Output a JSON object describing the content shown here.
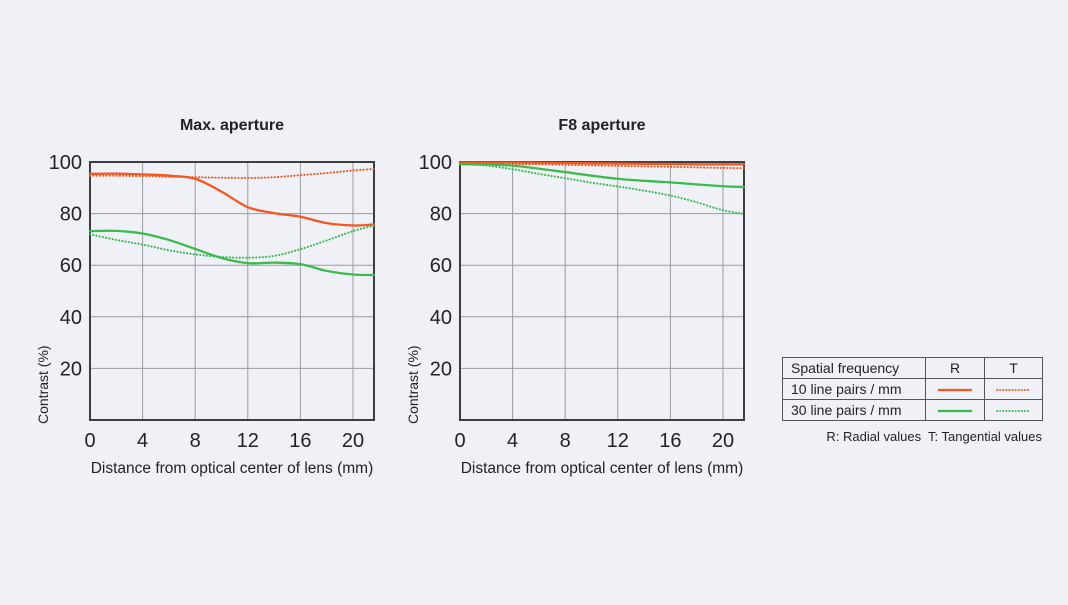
{
  "style": {
    "page_bg": "#eff1f6",
    "grid": "#9b9ca3",
    "border": "#3d3d42",
    "text": "#232327",
    "orange": "#f4571f",
    "green": "#3bba4e"
  },
  "chart_data": [
    {
      "type": "line",
      "title": "Max. aperture",
      "xlabel": "Distance from optical center of lens (mm)",
      "ylabel": "Contrast (%)",
      "xlim": [
        0,
        21.6
      ],
      "ylim": [
        0,
        100
      ],
      "xticks": [
        0,
        4,
        8,
        12,
        16,
        20
      ],
      "yticks": [
        20,
        40,
        60,
        80,
        100
      ],
      "grid": true,
      "series": [
        {
          "id": "t10",
          "name": "10 line pairs / mm — T (tangential)",
          "color": "#f4571f",
          "dash": "dotted",
          "x": [
            0,
            2,
            4,
            6,
            8,
            10,
            12,
            14,
            16,
            18,
            20,
            21.6
          ],
          "y": [
            94.7,
            94.7,
            94.5,
            94.3,
            94.1,
            93.9,
            93.8,
            94.1,
            94.9,
            95.7,
            96.7,
            97.3
          ]
        },
        {
          "id": "r10",
          "name": "10 line pairs / mm — R (radial)",
          "color": "#f4571f",
          "dash": "solid",
          "x": [
            0,
            2,
            4,
            6,
            8,
            10,
            12,
            14,
            16,
            18,
            20,
            21.6
          ],
          "y": [
            95.4,
            95.5,
            95.2,
            94.7,
            93.5,
            88.5,
            82.5,
            80.2,
            78.8,
            76.3,
            75.4,
            75.8
          ]
        },
        {
          "id": "t30",
          "name": "30 line pairs / mm — T (tangential)",
          "color": "#3bba4e",
          "dash": "dotted",
          "x": [
            0,
            2,
            4,
            6,
            8,
            10,
            12,
            14,
            16,
            18,
            20,
            21.6
          ],
          "y": [
            72,
            69.8,
            68,
            65.8,
            64.2,
            63.2,
            62.9,
            63.6,
            66.2,
            69.6,
            73.2,
            75.4
          ]
        },
        {
          "id": "r30",
          "name": "30 line pairs / mm — R (radial)",
          "color": "#3bba4e",
          "dash": "solid",
          "x": [
            0,
            2,
            4,
            6,
            8,
            10,
            12,
            14,
            16,
            18,
            20,
            21.6
          ],
          "y": [
            73.2,
            73.3,
            72.3,
            69.8,
            66.3,
            62.8,
            60.8,
            61.0,
            60.4,
            57.8,
            56.4,
            56.2
          ]
        }
      ]
    },
    {
      "type": "line",
      "title": "F8 aperture",
      "xlabel": "Distance from optical center of lens (mm)",
      "ylabel": "Contrast (%)",
      "xlim": [
        0,
        21.6
      ],
      "ylim": [
        0,
        100
      ],
      "xticks": [
        0,
        4,
        8,
        12,
        16,
        20
      ],
      "yticks": [
        20,
        40,
        60,
        80,
        100
      ],
      "grid": true,
      "series": [
        {
          "id": "t10",
          "name": "10 line pairs / mm — T (tangential)",
          "color": "#f4571f",
          "dash": "dotted",
          "x": [
            0,
            2,
            4,
            6,
            8,
            10,
            12,
            14,
            16,
            18,
            20,
            21.6
          ],
          "y": [
            99.4,
            99.3,
            99.2,
            99.1,
            98.9,
            98.7,
            98.5,
            98.3,
            98.1,
            97.9,
            97.7,
            97.6
          ]
        },
        {
          "id": "r10",
          "name": "10 line pairs / mm — R (radial)",
          "color": "#f4571f",
          "dash": "solid",
          "x": [
            0,
            2,
            4,
            6,
            8,
            10,
            12,
            14,
            16,
            18,
            20,
            21.6
          ],
          "y": [
            99.8,
            99.8,
            99.8,
            99.7,
            99.6,
            99.5,
            99.4,
            99.3,
            99.2,
            99.1,
            99.1,
            99.1
          ]
        },
        {
          "id": "t30",
          "name": "30 line pairs / mm — T (tangential)",
          "color": "#3bba4e",
          "dash": "dotted",
          "x": [
            0,
            2,
            4,
            6,
            8,
            10,
            12,
            14,
            16,
            18,
            20,
            21.6
          ],
          "y": [
            99.1,
            98.6,
            97.2,
            95.4,
            93.7,
            92.0,
            90.5,
            88.9,
            87.0,
            84.4,
            81.3,
            79.9
          ]
        },
        {
          "id": "r30",
          "name": "30 line pairs / mm — R (radial)",
          "color": "#3bba4e",
          "dash": "solid",
          "x": [
            0,
            2,
            4,
            6,
            8,
            10,
            12,
            14,
            16,
            18,
            20,
            21.6
          ],
          "y": [
            99.2,
            99.1,
            98.6,
            97.4,
            96.1,
            94.7,
            93.5,
            92.7,
            92.1,
            91.3,
            90.6,
            90.3
          ]
        }
      ]
    }
  ],
  "legend": {
    "header": [
      "Spatial frequency",
      "R",
      "T"
    ],
    "rows": [
      {
        "label": "10 line pairs / mm",
        "color": "#f4571f"
      },
      {
        "label": "30 line pairs / mm",
        "color": "#3bba4e"
      }
    ],
    "caption": "R: Radial values  T: Tangential values"
  }
}
